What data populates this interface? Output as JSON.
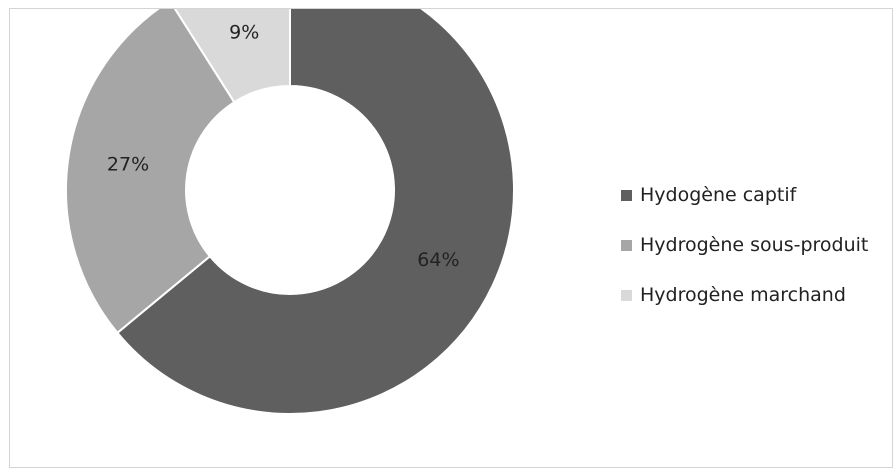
{
  "chart_data": {
    "type": "pie",
    "style": "donut",
    "title": "",
    "categories": [
      "Hydogène captif",
      "Hydrogène sous-produit",
      "Hydrogène marchand"
    ],
    "values": [
      64,
      27,
      9
    ],
    "labels": [
      "64%",
      "27%",
      "9%"
    ],
    "colors": [
      "#5f5f5f",
      "#a6a6a6",
      "#d9d9d9"
    ],
    "legend_position": "right"
  }
}
